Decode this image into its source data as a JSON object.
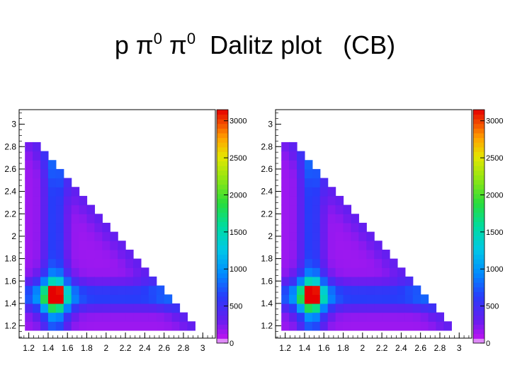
{
  "slide": {
    "title_p": "p",
    "title_pi": "π",
    "title_sup": "0",
    "title_rest": "Dalitz plot   (CB)"
  },
  "chart_data": [
    {
      "type": "heatmap",
      "title": "",
      "xlabel": "",
      "ylabel": "",
      "xlim": [
        1.1,
        3.13
      ],
      "ylim": [
        1.09,
        3.13
      ],
      "x_ticks": [
        "1.2",
        "1.4",
        "1.6",
        "1.8",
        "2",
        "2.2",
        "2.4",
        "2.6",
        "2.8",
        "3"
      ],
      "y_ticks": [
        "1.2",
        "1.4",
        "1.6",
        "1.8",
        "2",
        "2.2",
        "2.4",
        "2.6",
        "2.8",
        "3"
      ],
      "colorbar": {
        "min": 0,
        "max": 3150,
        "ticks": [
          "0",
          "500",
          "1000",
          "1500",
          "2000",
          "2500",
          "3000"
        ]
      },
      "peak": {
        "x": 1.47,
        "y": 1.47,
        "value": 3100
      },
      "region": "m2x >= 1.16, m2y >= 1.16, m2x + m2y <= 4.18, m2y <= 2.82",
      "bin_width": 0.08
    },
    {
      "type": "heatmap",
      "title": "",
      "xlabel": "",
      "ylabel": "",
      "xlim": [
        1.1,
        3.13
      ],
      "ylim": [
        1.09,
        3.13
      ],
      "x_ticks": [
        "1.2",
        "1.4",
        "1.6",
        "1.8",
        "2",
        "2.2",
        "2.4",
        "2.6",
        "2.8",
        "3"
      ],
      "y_ticks": [
        "1.2",
        "1.4",
        "1.6",
        "1.8",
        "2",
        "2.2",
        "2.4",
        "2.6",
        "2.8",
        "3"
      ],
      "colorbar": {
        "min": 0,
        "max": 3150,
        "ticks": [
          "0",
          "500",
          "1000",
          "1500",
          "2000",
          "2500",
          "3000"
        ]
      },
      "peak": {
        "x": 1.47,
        "y": 1.47,
        "value": 3100
      },
      "region": "m2x >= 1.16, m2y >= 1.16, m2x + m2y <= 4.18, m2y <= 2.82",
      "bin_width": 0.08
    }
  ]
}
